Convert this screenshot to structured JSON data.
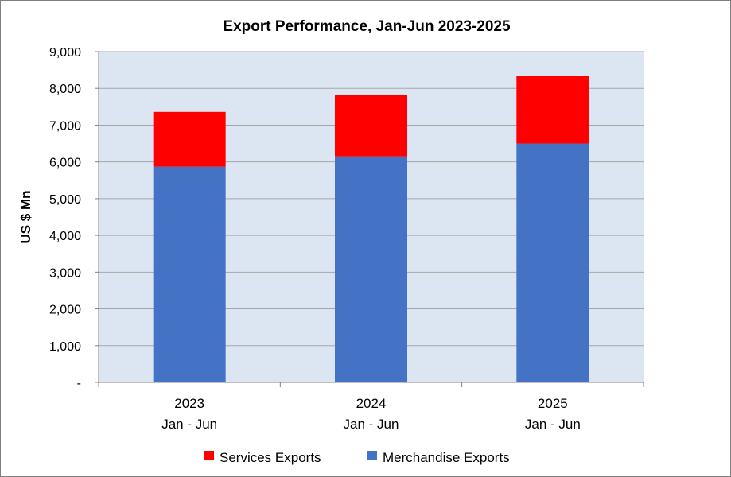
{
  "chart_data": {
    "type": "bar",
    "stacked": true,
    "title": "Export Performance, Jan-Jun 2023-2025",
    "xlabel": "",
    "ylabel": "US $ Mn",
    "categories": [
      [
        "2023",
        "Jan - Jun"
      ],
      [
        "2024",
        "Jan - Jun"
      ],
      [
        "2025",
        "Jan - Jun"
      ]
    ],
    "series": [
      {
        "name": "Merchandise Exports",
        "color": "#4472C4",
        "values": [
          5870,
          6150,
          6500
        ]
      },
      {
        "name": "Services Exports",
        "color": "#FF0000",
        "values": [
          1490,
          1670,
          1840
        ]
      }
    ],
    "legend_order": [
      "Services Exports",
      "Merchandise Exports"
    ],
    "ylim": [
      0,
      9000
    ],
    "yticks": [
      0,
      1000,
      2000,
      3000,
      4000,
      5000,
      6000,
      7000,
      8000,
      9000
    ],
    "ytick_labels": [
      "-",
      "1,000",
      "2,000",
      "3,000",
      "4,000",
      "5,000",
      "6,000",
      "7,000",
      "8,000",
      "9,000"
    ],
    "grid": true,
    "plot_background": "#DCE6F2",
    "gridline_color": "#A6A6A6",
    "legend_position": "bottom"
  }
}
